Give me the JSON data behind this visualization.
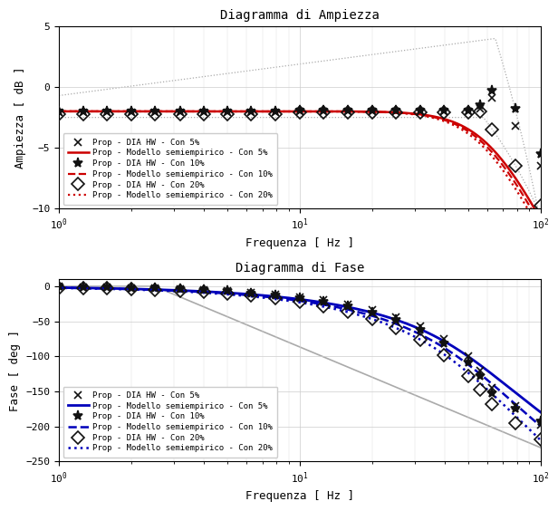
{
  "title_amp": "Diagramma di Ampiezza",
  "title_phase": "Diagramma di Fase",
  "xlabel": "Frequenza [ Hz ]",
  "ylabel_amp": "Ampiezza [ dB ]",
  "ylabel_phase": "Fase [ deg ]",
  "amp_ylim": [
    -10,
    5
  ],
  "amp_yticks": [
    -10,
    -5,
    0,
    5
  ],
  "phase_ylim": [
    -250,
    10
  ],
  "phase_yticks": [
    -250,
    -200,
    -150,
    -100,
    -50,
    0
  ],
  "freq_lim": [
    1,
    100
  ],
  "color_red": "#cc0000",
  "color_blue": "#0000bb",
  "color_gray": "#aaaaaa",
  "color_black": "#111111"
}
